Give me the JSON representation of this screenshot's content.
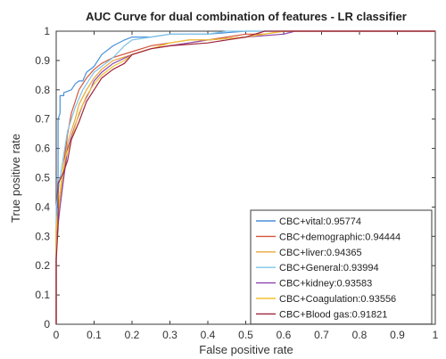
{
  "chart_data": {
    "type": "line",
    "title": "AUC Curve for  dual combination of features - LR classifier",
    "xlabel": "False positive rate",
    "ylabel": "True positive rate",
    "xlim": [
      0,
      1
    ],
    "ylim": [
      0,
      1
    ],
    "xticks": [
      "0",
      "0.1",
      "0.2",
      "0.3",
      "0.4",
      "0.5",
      "0.6",
      "0.7",
      "0.8",
      "0.9",
      "1"
    ],
    "yticks": [
      "0",
      "0.1",
      "0.2",
      "0.3",
      "0.4",
      "0.5",
      "0.6",
      "0.7",
      "0.8",
      "0.9",
      "1"
    ],
    "grid": false,
    "legend_position": "bottom-right",
    "series": [
      {
        "name": "CBC+vital:0.95774",
        "color": "#4a90d9",
        "x": [
          0,
          0,
          0.005,
          0.005,
          0.01,
          0.01,
          0.02,
          0.02,
          0.04,
          0.05,
          0.06,
          0.07,
          0.08,
          0.1,
          0.12,
          0.15,
          0.18,
          0.2,
          0.25,
          0.3,
          0.4,
          0.5,
          0.55,
          1
        ],
        "y": [
          0,
          0.35,
          0.5,
          0.7,
          0.72,
          0.78,
          0.78,
          0.79,
          0.8,
          0.82,
          0.83,
          0.83,
          0.86,
          0.88,
          0.92,
          0.95,
          0.97,
          0.98,
          0.98,
          0.99,
          0.99,
          1,
          1,
          1
        ]
      },
      {
        "name": "CBC+demographic:0.94444",
        "color": "#d4553a",
        "x": [
          0,
          0,
          0.01,
          0.02,
          0.03,
          0.04,
          0.05,
          0.06,
          0.08,
          0.1,
          0.12,
          0.15,
          0.2,
          0.25,
          0.3,
          0.35,
          0.4,
          0.45,
          0.5,
          0.55,
          0.6,
          1
        ],
        "y": [
          0,
          0.32,
          0.45,
          0.55,
          0.65,
          0.72,
          0.76,
          0.8,
          0.84,
          0.87,
          0.89,
          0.91,
          0.93,
          0.95,
          0.96,
          0.97,
          0.97,
          0.98,
          0.99,
          0.99,
          1,
          1
        ]
      },
      {
        "name": "CBC+liver:0.94365",
        "color": "#e8a83b",
        "x": [
          0,
          0,
          0.01,
          0.02,
          0.03,
          0.05,
          0.06,
          0.08,
          0.1,
          0.12,
          0.15,
          0.2,
          0.25,
          0.3,
          0.35,
          0.4,
          0.5,
          0.55,
          0.6,
          1
        ],
        "y": [
          0,
          0.3,
          0.42,
          0.52,
          0.62,
          0.7,
          0.75,
          0.8,
          0.84,
          0.87,
          0.9,
          0.92,
          0.94,
          0.95,
          0.96,
          0.97,
          0.98,
          0.99,
          1,
          1
        ]
      },
      {
        "name": "CBC+General:0.93994",
        "color": "#7fc4e6",
        "x": [
          0,
          0,
          0.01,
          0.02,
          0.03,
          0.05,
          0.07,
          0.09,
          0.1,
          0.12,
          0.15,
          0.18,
          0.2,
          0.25,
          0.3,
          0.35,
          0.4,
          0.45,
          0.5,
          1
        ],
        "y": [
          0,
          0.4,
          0.5,
          0.58,
          0.66,
          0.74,
          0.8,
          0.84,
          0.86,
          0.88,
          0.91,
          0.95,
          0.97,
          0.98,
          0.99,
          0.99,
          0.99,
          1,
          1,
          1
        ]
      },
      {
        "name": "CBC+kidney:0.93583",
        "color": "#8e44ad",
        "x": [
          0,
          0,
          0.01,
          0.02,
          0.03,
          0.05,
          0.07,
          0.09,
          0.1,
          0.12,
          0.15,
          0.2,
          0.25,
          0.3,
          0.35,
          0.4,
          0.5,
          0.6,
          0.63,
          1
        ],
        "y": [
          0,
          0.28,
          0.4,
          0.5,
          0.6,
          0.68,
          0.75,
          0.8,
          0.83,
          0.86,
          0.89,
          0.92,
          0.94,
          0.95,
          0.96,
          0.97,
          0.98,
          0.99,
          1,
          1
        ]
      },
      {
        "name": "CBC+Coagulation:0.93556",
        "color": "#f1c232",
        "x": [
          0,
          0,
          0.01,
          0.02,
          0.04,
          0.06,
          0.08,
          0.1,
          0.12,
          0.15,
          0.18,
          0.2,
          0.25,
          0.3,
          0.35,
          0.4,
          0.5,
          0.55,
          0.6,
          1
        ],
        "y": [
          0,
          0.33,
          0.45,
          0.55,
          0.63,
          0.72,
          0.78,
          0.82,
          0.85,
          0.88,
          0.9,
          0.92,
          0.94,
          0.96,
          0.97,
          0.97,
          0.98,
          0.99,
          1,
          1
        ]
      },
      {
        "name": "CBC+Blood gas:0.91821",
        "color": "#a0243a",
        "x": [
          0,
          0,
          0.005,
          0.005,
          0.02,
          0.03,
          0.04,
          0.06,
          0.08,
          0.1,
          0.12,
          0.15,
          0.18,
          0.2,
          0.25,
          0.3,
          0.4,
          0.5,
          0.55,
          1
        ],
        "y": [
          0,
          0.22,
          0.33,
          0.48,
          0.52,
          0.56,
          0.63,
          0.69,
          0.76,
          0.8,
          0.84,
          0.87,
          0.89,
          0.92,
          0.94,
          0.95,
          0.96,
          0.98,
          1,
          1
        ]
      }
    ]
  }
}
